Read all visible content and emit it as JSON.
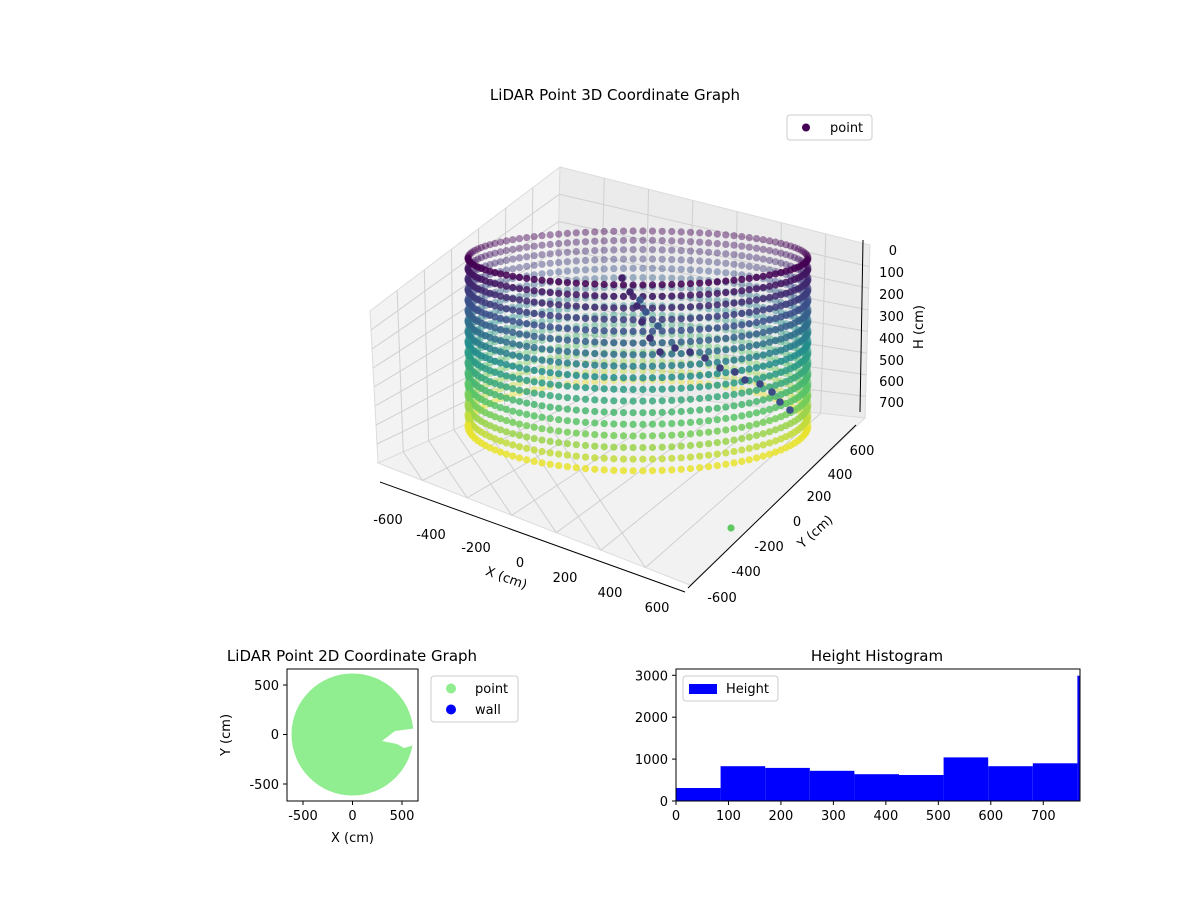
{
  "chart_data": [
    {
      "type": "scatter",
      "title": "LiDAR Point 3D Coordinate Graph",
      "xlabel": "X (cm)",
      "ylabel": "Y (cm)",
      "zlabel": "H (cm)",
      "xlim": [
        -700,
        700
      ],
      "ylim": [
        -700,
        700
      ],
      "zlim": [
        780,
        0
      ],
      "xticks": [
        "-600",
        "-400",
        "-200",
        "0",
        "200",
        "400",
        "600"
      ],
      "yticks": [
        "-600",
        "-400",
        "-200",
        "0",
        "200",
        "400",
        "600"
      ],
      "zticks": [
        "0",
        "100",
        "200",
        "300",
        "400",
        "500",
        "600",
        "700"
      ],
      "legend": {
        "labels": [
          "point"
        ],
        "position": "top-right"
      },
      "colormap": "viridis",
      "colors": {
        "dark": "#440154",
        "mid": "#21918c",
        "light": "#fde725"
      },
      "series": [
        {
          "name": "point",
          "shape": "cylinder-wall",
          "center": [
            0,
            0
          ],
          "radius": 560,
          "height_range": [
            0,
            780
          ],
          "outliers": [
            [
              -200,
              -100,
              100
            ],
            [
              -80,
              -40,
              250
            ],
            [
              50,
              80,
              400
            ],
            [
              300,
              250,
              420
            ],
            [
              400,
              -500,
              720
            ]
          ]
        }
      ]
    },
    {
      "type": "scatter",
      "title": "LiDAR Point 2D Coordinate Graph",
      "xlabel": "X (cm)",
      "ylabel": "Y (cm)",
      "xlim": [
        -680,
        680
      ],
      "ylim": [
        -680,
        680
      ],
      "xticks": [
        "-500",
        "0",
        "500"
      ],
      "yticks": [
        "-500",
        "0",
        "500"
      ],
      "legend": {
        "labels": [
          "point",
          "wall"
        ],
        "position": "right"
      },
      "series": [
        {
          "name": "point",
          "color": "#90ee90",
          "shape": "disk",
          "radius": 620
        },
        {
          "name": "wall",
          "color": "#0000ff",
          "values": []
        }
      ]
    },
    {
      "type": "bar",
      "title": "Height Histogram",
      "xlim": [
        0,
        770
      ],
      "ylim": [
        0,
        3150
      ],
      "xticks": [
        "0",
        "100",
        "200",
        "300",
        "400",
        "500",
        "600",
        "700"
      ],
      "yticks": [
        "0",
        "1000",
        "2000",
        "3000"
      ],
      "legend": {
        "labels": [
          "Height"
        ],
        "position": "top-left"
      },
      "color": "#0000ff",
      "bin_edges": [
        0,
        85,
        170,
        255,
        340,
        425,
        510,
        595,
        680,
        765,
        770
      ],
      "values": [
        310,
        830,
        790,
        720,
        640,
        620,
        1040,
        830,
        900,
        2990
      ]
    }
  ]
}
